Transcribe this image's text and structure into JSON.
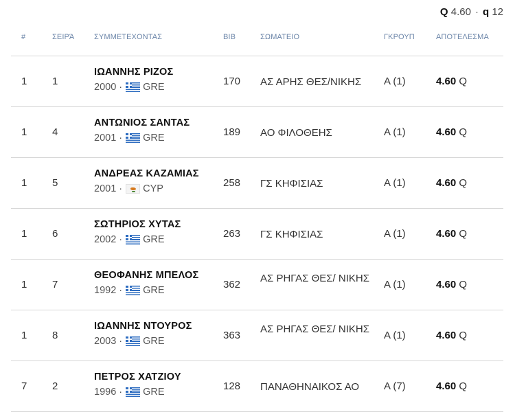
{
  "qualification": {
    "q_cap": "Q",
    "q_value": "4.60",
    "separator": "·",
    "q_small": "q",
    "q_count": "12"
  },
  "headers": {
    "rank": "#",
    "heat": "ΣΕΙΡΆ",
    "name": "ΣΥΜΜΕΤΕΧΟΝΤΑΣ",
    "bib": "BIB",
    "club": "ΣΩΜΑΤΕΙΟ",
    "group": "ΓΚΡΟΥΠ",
    "result": "ΑΠΟΤΕΛΕΣΜΑ"
  },
  "rows": [
    {
      "rank": "1",
      "heat": "1",
      "name": "ΙΩΑΝΝΗΣ ΡΙΖΟΣ",
      "year": "2000",
      "sep": "·",
      "flag": "greece-flag-icon",
      "country": "GRE",
      "bib": "170",
      "club": "ΑΣ ΑΡΗΣ ΘΕΣ/ΝΙΚΗΣ",
      "group": "A  (1)",
      "result": "4.60",
      "qual": "Q"
    },
    {
      "rank": "1",
      "heat": "4",
      "name": "ΑΝΤΩΝΙΟΣ ΣΑΝΤΑΣ",
      "year": "2001",
      "sep": "·",
      "flag": "greece-flag-icon",
      "country": "GRE",
      "bib": "189",
      "club": "ΑΟ ΦΙΛΟΘΕΗΣ",
      "group": "A  (1)",
      "result": "4.60",
      "qual": "Q"
    },
    {
      "rank": "1",
      "heat": "5",
      "name": "ΑΝΔΡΕΑΣ ΚΑΖΑΜΙΑΣ",
      "year": "2001",
      "sep": "·",
      "flag": "cyprus-flag-icon",
      "country": "CYP",
      "bib": "258",
      "club": "ΓΣ ΚΗΦΙΣΙΑΣ",
      "group": "A  (1)",
      "result": "4.60",
      "qual": "Q"
    },
    {
      "rank": "1",
      "heat": "6",
      "name": "ΣΩΤΗΡΙΟΣ ΧΥΤΑΣ",
      "year": "2002",
      "sep": "·",
      "flag": "greece-flag-icon",
      "country": "GRE",
      "bib": "263",
      "club": "ΓΣ ΚΗΦΙΣΙΑΣ",
      "group": "A  (1)",
      "result": "4.60",
      "qual": "Q"
    },
    {
      "rank": "1",
      "heat": "7",
      "name": "ΘΕΟΦΑΝΗΣ ΜΠΕΛΟΣ",
      "year": "1992",
      "sep": "·",
      "flag": "greece-flag-icon",
      "country": "GRE",
      "bib": "362",
      "club": "ΑΣ ΡΗΓΑΣ ΘΕΣ/ ΝΙΚΗΣ",
      "group": "A  (1)",
      "result": "4.60",
      "qual": "Q"
    },
    {
      "rank": "1",
      "heat": "8",
      "name": "ΙΩΑΝΝΗΣ ΝΤΟΥΡΟΣ",
      "year": "2003",
      "sep": "·",
      "flag": "greece-flag-icon",
      "country": "GRE",
      "bib": "363",
      "club": "ΑΣ ΡΗΓΑΣ ΘΕΣ/ ΝΙΚΗΣ",
      "group": "A  (1)",
      "result": "4.60",
      "qual": "Q"
    },
    {
      "rank": "7",
      "heat": "2",
      "name": "ΠΕΤΡΟΣ ΧΑΤΖΙΟΥ",
      "year": "1996",
      "sep": "·",
      "flag": "greece-flag-icon",
      "country": "GRE",
      "bib": "128",
      "club": "ΠΑΝΑΘΗΝΑΙΚΟΣ ΑΟ",
      "group": "A  (7)",
      "result": "4.60",
      "qual": "Q"
    }
  ]
}
